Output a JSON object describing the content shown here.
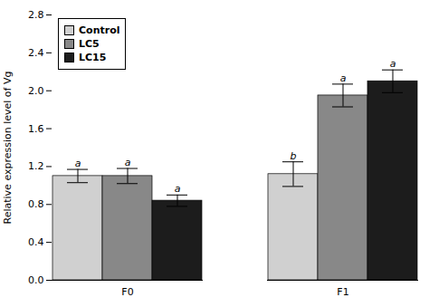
{
  "chart_data": {
    "type": "bar",
    "categories": [
      "F0",
      "F1"
    ],
    "series": [
      {
        "name": "Control",
        "color": "#d0d0d0",
        "values": [
          1.1,
          1.12
        ],
        "errors": [
          0.07,
          0.13
        ],
        "significance_labels": [
          "a",
          "b"
        ]
      },
      {
        "name": "LC5",
        "color": "#888888",
        "values": [
          1.1,
          1.95
        ],
        "errors": [
          0.08,
          0.12
        ],
        "significance_labels": [
          "a",
          "a"
        ]
      },
      {
        "name": "LC15",
        "color": "#1c1c1c",
        "values": [
          0.84,
          2.1
        ],
        "errors": [
          0.06,
          0.12
        ],
        "significance_labels": [
          "a",
          "a"
        ]
      }
    ],
    "ylabel": "Relative expression level of Vg",
    "ylim": [
      0.0,
      2.8
    ],
    "yticks": [
      {
        "value": 0,
        "label": "0.0"
      },
      0.4,
      0.8,
      1.2,
      1.6,
      {
        "value": 2,
        "label": "2.0"
      },
      2.4,
      2.8
    ],
    "legend": "upper left"
  }
}
